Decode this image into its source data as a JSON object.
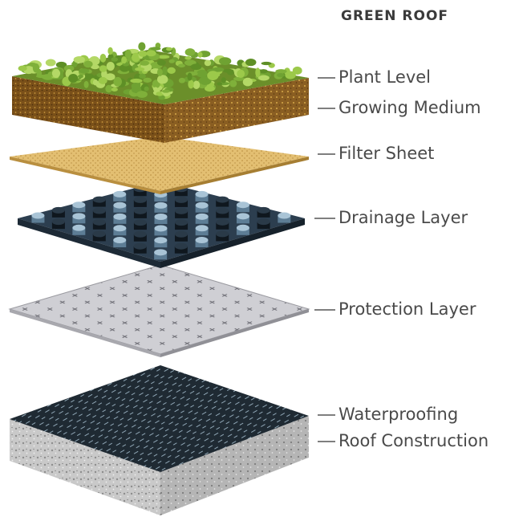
{
  "title": "GREEN ROOF",
  "labels": [
    "Plant Level",
    "Growing Medium",
    "Filter Sheet",
    "Drainage Layer",
    "Protection Layer",
    "Waterproofing",
    "Roof Construction"
  ]
}
